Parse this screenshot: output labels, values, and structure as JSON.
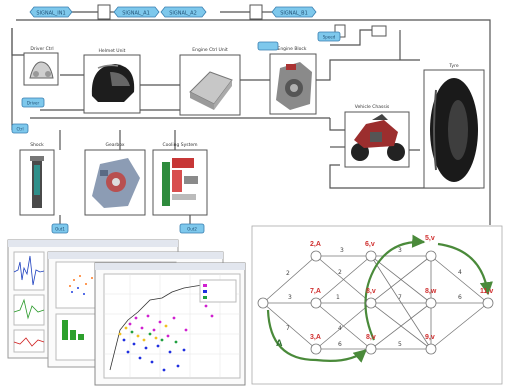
{
  "top_diagram": {
    "top_tags": [
      "SIGNAL_IN1",
      "SIGNAL_A1",
      "SIGNAL_A2",
      "SIGNAL_B1"
    ],
    "blocks": [
      {
        "id": "driver",
        "label": "Driver Ctrl"
      },
      {
        "id": "helmet",
        "label": "Helmet Unit"
      },
      {
        "id": "ecu",
        "label": "Engine Ctrl Unit"
      },
      {
        "id": "engine",
        "label": "Engine Block"
      },
      {
        "id": "tyre",
        "label": "Tyre"
      },
      {
        "id": "chassis",
        "label": "Vehicle Chassis"
      },
      {
        "id": "shock",
        "label": "Shock"
      },
      {
        "id": "gearbox",
        "label": "Gearbox"
      },
      {
        "id": "cooling",
        "label": "Cooling System"
      }
    ],
    "small_tags": [
      "Driver",
      "Ctrl",
      "Out1",
      "Out2",
      "Speed"
    ]
  },
  "network": {
    "nodes": [
      {
        "id": "start",
        "label": ""
      },
      {
        "id": "n1",
        "label": "2,A"
      },
      {
        "id": "n2",
        "label": "6,v"
      },
      {
        "id": "n3",
        "label": "5,v"
      },
      {
        "id": "n4",
        "label": ""
      },
      {
        "id": "n5",
        "label": "7,A"
      },
      {
        "id": "n6",
        "label": "8,v"
      },
      {
        "id": "n7",
        "label": "8,w"
      },
      {
        "id": "n8",
        "label": ""
      },
      {
        "id": "n9",
        "label": "3,A"
      },
      {
        "id": "n10",
        "label": "8,v"
      },
      {
        "id": "n11",
        "label": "9,v"
      },
      {
        "id": "n12",
        "label": ""
      },
      {
        "id": "end",
        "label": "11,v"
      }
    ],
    "edge_weights": [
      "2",
      "3",
      "7",
      "3",
      "2",
      "1",
      "4",
      "6",
      "3",
      "7",
      "5",
      "4",
      "6"
    ],
    "path_label": "A"
  }
}
